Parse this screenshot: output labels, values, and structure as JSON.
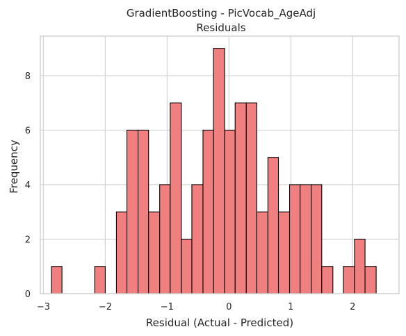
{
  "chart_data": {
    "type": "bar",
    "title": "GradientBoosting - PicVocab_AgeAdj",
    "subtitle": "Residuals",
    "xlabel": "Residual (Actual - Predicted)",
    "ylabel": "Frequency",
    "xlim": [
      -3.05,
      2.75
    ],
    "ylim": [
      0,
      9.45
    ],
    "xticks": [
      -3,
      -2,
      -1,
      0,
      1,
      2
    ],
    "xtick_labels": [
      "−3",
      "−2",
      "−1",
      "0",
      "1",
      "2"
    ],
    "yticks": [
      0,
      2,
      4,
      6,
      8
    ],
    "ytick_labels": [
      "0",
      "2",
      "4",
      "6",
      "8"
    ],
    "grid": true,
    "bar_color": "#f08080",
    "edge_color": "#000000",
    "bin_edges": [
      -2.87,
      -2.7,
      -2.52,
      -2.35,
      -2.17,
      -2.0,
      -1.82,
      -1.65,
      -1.47,
      -1.3,
      -1.12,
      -0.95,
      -0.77,
      -0.6,
      -0.42,
      -0.25,
      -0.07,
      0.1,
      0.28,
      0.45,
      0.63,
      0.8,
      0.98,
      1.15,
      1.33,
      1.5,
      1.68,
      1.85,
      2.03,
      2.2,
      2.38,
      2.55
    ],
    "values": [
      1,
      0,
      0,
      0,
      1,
      0,
      3,
      6,
      6,
      3,
      4,
      7,
      2,
      4,
      6,
      9,
      6,
      7,
      7,
      3,
      5,
      3,
      4,
      4,
      4,
      1,
      0,
      1,
      2,
      1,
      0
    ]
  }
}
